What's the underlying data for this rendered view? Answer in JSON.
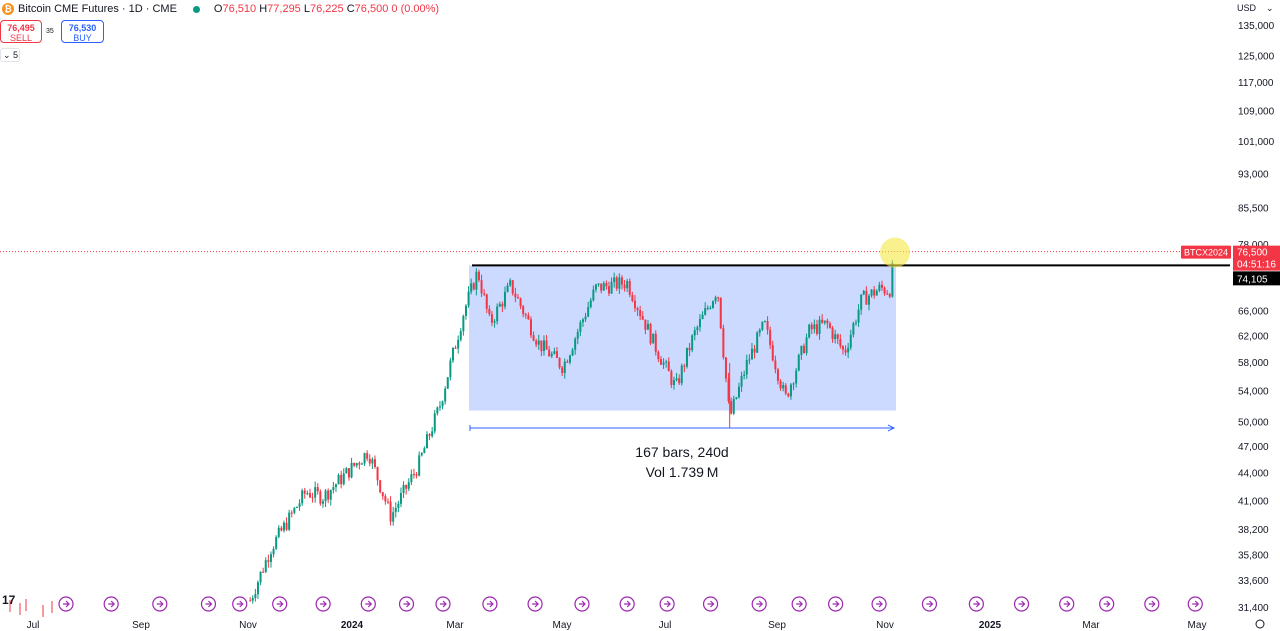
{
  "header": {
    "symbol": "Bitcoin CME Futures · 1D · CME",
    "open_label": "O",
    "open": "76,510",
    "high_label": "H",
    "high": "77,295",
    "low_label": "L",
    "low": "76,225",
    "close_label": "C",
    "close": "76,500",
    "change": "0 (0.00%)"
  },
  "trade": {
    "sell_price": "76,495",
    "sell_label": "SELL",
    "buy_price": "76,530",
    "buy_label": "BUY",
    "spread": "35"
  },
  "collapse_label": "5",
  "currency": "USD",
  "chart_data": {
    "type": "candlestick",
    "scale": "log",
    "ylim": [
      31000,
      140000
    ],
    "y_ticks": [
      "135,000",
      "125,000",
      "117,000",
      "109,000",
      "101,000",
      "93,000",
      "85,500",
      "78,000",
      "66,000",
      "62,000",
      "58,000",
      "54,000",
      "50,000",
      "47,000",
      "44,000",
      "41,000",
      "38,200",
      "35,800",
      "33,600",
      "31,400"
    ],
    "x_ticks": [
      "Jul",
      "Sep",
      "Nov",
      "2024",
      "Mar",
      "May",
      "Jul",
      "Sep",
      "Nov",
      "2025",
      "Mar",
      "May"
    ],
    "x_range": [
      "2023-07-01",
      "2025-05-20"
    ],
    "series": [
      {
        "values": [
          [
            "2023-11-03",
            32000
          ],
          [
            "2023-11-15",
            36500
          ],
          [
            "2023-12-05",
            42000
          ],
          [
            "2023-12-15",
            41500
          ],
          [
            "2024-01-10",
            46500
          ],
          [
            "2024-01-23",
            39500
          ],
          [
            "2024-02-08",
            45000
          ],
          [
            "2024-02-20",
            52000
          ],
          [
            "2024-03-05",
            66000
          ],
          [
            "2024-03-13",
            73000
          ],
          [
            "2024-03-20",
            64000
          ],
          [
            "2024-04-01",
            70500
          ],
          [
            "2024-04-17",
            61000
          ],
          [
            "2024-05-01",
            57500
          ],
          [
            "2024-05-20",
            70000
          ],
          [
            "2024-06-07",
            71000
          ],
          [
            "2024-06-24",
            60000
          ],
          [
            "2024-07-05",
            54500
          ],
          [
            "2024-07-15",
            62000
          ],
          [
            "2024-07-29",
            70000
          ],
          [
            "2024-08-05",
            50500
          ],
          [
            "2024-08-15",
            58000
          ],
          [
            "2024-08-25",
            64000
          ],
          [
            "2024-09-06",
            53000
          ],
          [
            "2024-09-20",
            63000
          ],
          [
            "2024-09-30",
            64000
          ],
          [
            "2024-10-10",
            59500
          ],
          [
            "2024-10-20",
            68000
          ],
          [
            "2024-10-31",
            70000
          ],
          [
            "2024-11-05",
            69500
          ],
          [
            "2024-11-08",
            76500
          ]
        ]
      }
    ],
    "range_box": {
      "start": "2024-03-05",
      "end": "2024-11-08",
      "high": 74105,
      "low": 51500
    },
    "measure": {
      "bars_text": "167 bars, 240d",
      "vol_text": "Vol 1.739 M"
    },
    "resistance": 74105,
    "last_price": 76500,
    "last_tag": "BTCX2024",
    "last_price_label": "76,500",
    "countdown": "04:51:16",
    "resistance_label": "74,105",
    "event_dates": [
      "2023-07-20",
      "2023-08-15",
      "2023-09-12",
      "2023-10-10",
      "2023-10-28",
      "2023-11-20",
      "2023-12-15",
      "2024-01-10",
      "2024-02-01",
      "2024-02-22",
      "2024-03-20",
      "2024-04-15",
      "2024-05-12",
      "2024-06-07",
      "2024-06-30",
      "2024-07-25",
      "2024-08-22",
      "2024-09-14",
      "2024-10-05",
      "2024-10-30",
      "2024-11-28",
      "2024-12-25",
      "2025-01-20",
      "2025-02-15",
      "2025-03-10",
      "2025-04-05",
      "2025-04-30"
    ]
  }
}
